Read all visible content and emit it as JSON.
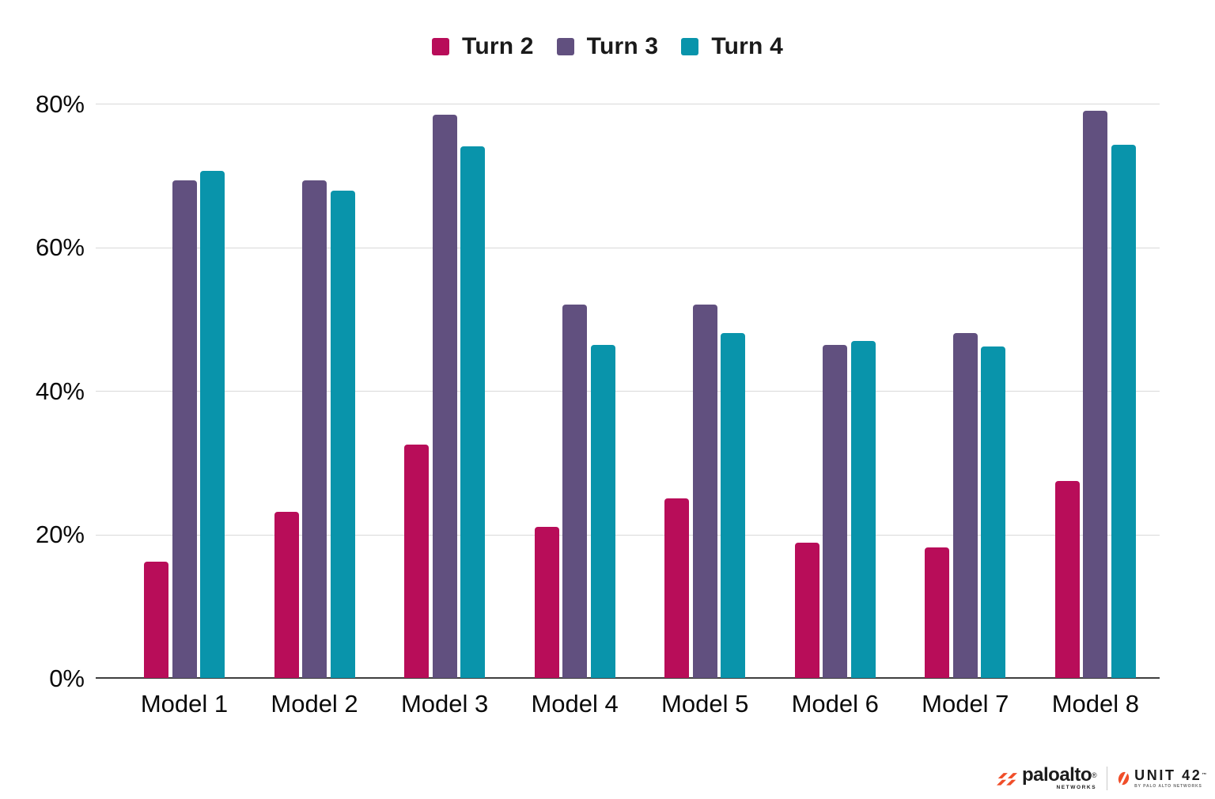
{
  "chart_data": {
    "type": "bar",
    "title": "",
    "xlabel": "",
    "ylabel": "",
    "categories": [
      "Model 1",
      "Model 2",
      "Model 3",
      "Model 4",
      "Model 5",
      "Model 6",
      "Model 7",
      "Model 8"
    ],
    "series": [
      {
        "name": "Turn 2",
        "color": "#B80D59",
        "values": [
          16.2,
          23.1,
          32.5,
          21.0,
          25.0,
          18.8,
          18.2,
          27.4
        ]
      },
      {
        "name": "Turn 3",
        "color": "#61507F",
        "values": [
          69.3,
          69.3,
          78.5,
          52.0,
          52.0,
          46.4,
          48.0,
          79.0
        ]
      },
      {
        "name": "Turn 4",
        "color": "#0994AB",
        "values": [
          70.6,
          67.9,
          74.0,
          46.4,
          48.0,
          46.9,
          46.2,
          74.3
        ]
      }
    ],
    "ylim": [
      0,
      80
    ],
    "yticks": [
      {
        "value": 0,
        "label": "0%"
      },
      {
        "value": 20,
        "label": "20%"
      },
      {
        "value": 40,
        "label": "40%"
      },
      {
        "value": 60,
        "label": "60%"
      },
      {
        "value": 80,
        "label": "80%"
      }
    ],
    "grid": true,
    "legend_position": "top"
  },
  "colors": {
    "background": "#FFFFFF",
    "gridline": "#D9D9D9",
    "axis_line": "#3F3F3F",
    "tick_text": "#0A0A0A",
    "legend_text": "#1A1A1A",
    "logo_orange": "#F04E29",
    "logo_text": "#1B1B1B"
  },
  "footer": {
    "paloalto": {
      "brand": "paloalto",
      "reg": "®",
      "sub": "NETWORKS"
    },
    "unit42": {
      "brand": "UNIT 42",
      "tm": "™",
      "sub": "BY PALO ALTO NETWORKS"
    }
  }
}
